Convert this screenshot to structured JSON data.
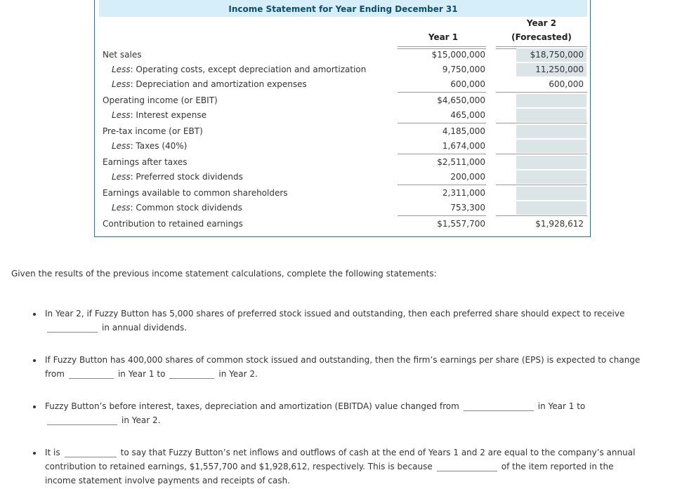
{
  "table": {
    "title": "Income Statement for Year Ending December 31",
    "col1": "Year 1",
    "col2a": "Year 2",
    "col2b": "(Forecasted)",
    "less": "Less",
    "rows": [
      {
        "label": "Net sales",
        "y1": "$15,000,000",
        "y2": "$18,750,000"
      },
      {
        "label": ": Operating costs, except depreciation and amortization",
        "y1": "9,750,000",
        "y2": "11,250,000"
      },
      {
        "label": ": Depreciation and amortization expenses",
        "y1": "600,000",
        "y2": "600,000"
      },
      {
        "label": "Operating income (or EBIT)",
        "y1": "$4,650,000",
        "y2": ""
      },
      {
        "label": ": Interest expense",
        "y1": "465,000",
        "y2": ""
      },
      {
        "label": "Pre-tax income (or EBT)",
        "y1": "4,185,000",
        "y2": ""
      },
      {
        "label": ": Taxes (40%)",
        "y1": "1,674,000",
        "y2": ""
      },
      {
        "label": "Earnings after taxes",
        "y1": "$2,511,000",
        "y2": ""
      },
      {
        "label": ": Preferred stock dividends",
        "y1": "200,000",
        "y2": ""
      },
      {
        "label": "Earnings available to common shareholders",
        "y1": "2,311,000",
        "y2": ""
      },
      {
        "label": ": Common stock dividends",
        "y1": "753,300",
        "y2": ""
      },
      {
        "label": "Contribution to retained earnings",
        "y1": "$1,557,700",
        "y2": "$1,928,612"
      }
    ]
  },
  "intro": "Given the results of the previous income statement calculations, complete the following statements:",
  "q1": {
    "a": "In Year 2, if Fuzzy Button has 5,000 shares of preferred stock issued and outstanding, then each preferred share should expect to receive",
    "b": "in annual dividends."
  },
  "q2": {
    "a": "If Fuzzy Button has 400,000 shares of common stock issued and outstanding, then the firm’s earnings per share (EPS) is expected to change",
    "b": "from",
    "c": "in Year 1 to",
    "d": "in Year 2."
  },
  "q3": {
    "a": "Fuzzy Button’s before interest, taxes, depreciation and amortization (EBITDA) value changed from",
    "b": "in Year 1 to",
    "c": "in Year 2."
  },
  "q4": {
    "a": "It is",
    "b": "to say that Fuzzy Button’s net inflows and outflows of cash at the end of Years 1 and 2 are equal to the company’s annual",
    "c": "contribution to retained earnings, $1,557,700 and $1,928,612, respectively. This is because",
    "d": "of the item reported in the",
    "e": "income statement involve payments and receipts of cash."
  }
}
